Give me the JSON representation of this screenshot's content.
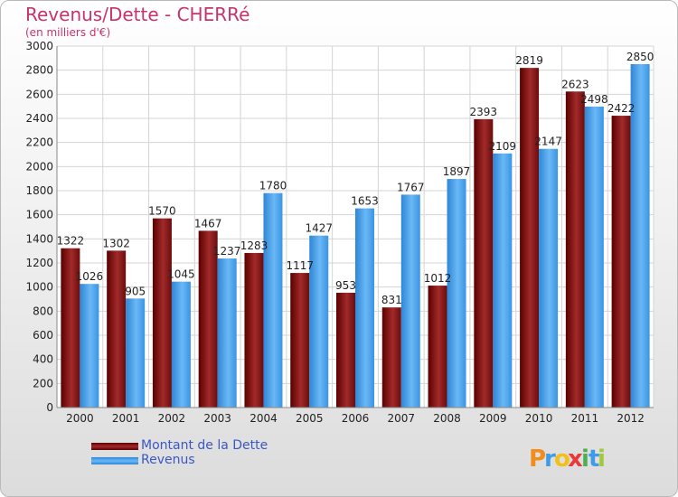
{
  "chart_data": {
    "type": "bar",
    "title": "Revenus/Dette - CHERRé",
    "subtitle": "(en milliers d'€)",
    "categories": [
      "2000",
      "2001",
      "2002",
      "2003",
      "2004",
      "2005",
      "2006",
      "2007",
      "2008",
      "2009",
      "2010",
      "2011",
      "2012"
    ],
    "series": [
      {
        "name": "Montant de la Dette",
        "color": "#7a1010",
        "values": [
          1322,
          1302,
          1570,
          1467,
          1283,
          1117,
          953,
          831,
          1012,
          2393,
          2819,
          2623,
          2422
        ]
      },
      {
        "name": "Revenus",
        "color": "#3f9be8",
        "values": [
          1026,
          905,
          1045,
          1237,
          1780,
          1427,
          1653,
          1767,
          1897,
          2109,
          2147,
          2498,
          2850
        ]
      }
    ],
    "ylim": [
      0,
      3000
    ],
    "yticks": [
      0,
      200,
      400,
      600,
      800,
      1000,
      1200,
      1400,
      1600,
      1800,
      2000,
      2200,
      2400,
      2600,
      2800,
      3000
    ],
    "grid": true,
    "legend_position": "bottom-left"
  },
  "logo": {
    "text": "Proxiti",
    "letters": [
      "P",
      "r",
      "o",
      "x",
      "i",
      "t",
      "i"
    ]
  },
  "colors": {
    "title": "#c8336c",
    "legend_text": "#3a57c4"
  }
}
